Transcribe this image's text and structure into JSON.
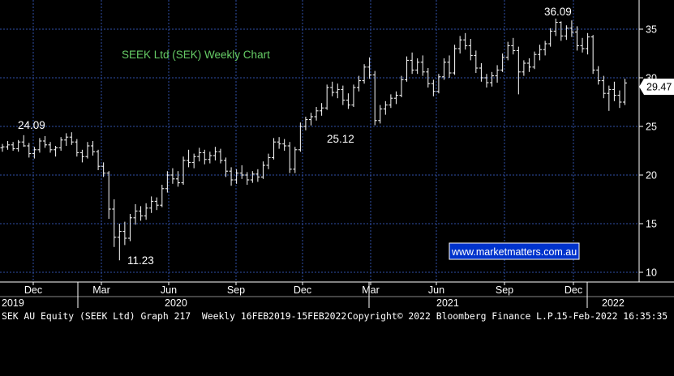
{
  "chart_data": {
    "type": "ohlc",
    "title": "SEEK Ltd (SEK) Weekly Chart",
    "ylim": [
      9,
      38
    ],
    "yticks": [
      10,
      15,
      20,
      25,
      30,
      35
    ],
    "last_price": "29.47",
    "watermark": "www.marketmatters.com.au",
    "month_labels": [
      "Dec",
      "Mar",
      "Jun",
      "Sep",
      "Dec",
      "Mar",
      "Jun",
      "Sep",
      "Dec"
    ],
    "year_labels": [
      "2019",
      "2020",
      "2021",
      "2022"
    ],
    "annotations": [
      {
        "text": "24.09",
        "value": 24.09
      },
      {
        "text": "11.23",
        "value": 11.23
      },
      {
        "text": "25.12",
        "value": 25.12
      },
      {
        "text": "36.09",
        "value": 36.09
      }
    ],
    "series": [
      {
        "values": [
          [
            22.8,
            23.2,
            22.4,
            22.9
          ],
          [
            22.9,
            23.5,
            22.6,
            23.1
          ],
          [
            23.1,
            23.4,
            22.5,
            22.7
          ],
          [
            22.7,
            23.6,
            22.4,
            23.4
          ],
          [
            23.4,
            24.1,
            22.9,
            23.0
          ],
          [
            23.0,
            23.3,
            21.8,
            22.2
          ],
          [
            22.2,
            22.9,
            21.7,
            22.6
          ],
          [
            22.6,
            23.8,
            22.3,
            23.5
          ],
          [
            23.5,
            24.0,
            22.8,
            23.1
          ],
          [
            23.1,
            23.4,
            22.3,
            22.6
          ],
          [
            22.6,
            23.0,
            21.9,
            22.8
          ],
          [
            22.8,
            23.9,
            22.5,
            23.6
          ],
          [
            23.6,
            24.3,
            23.0,
            23.9
          ],
          [
            23.9,
            24.4,
            23.1,
            23.4
          ],
          [
            23.4,
            23.7,
            21.9,
            22.3
          ],
          [
            22.3,
            22.6,
            21.3,
            21.9
          ],
          [
            21.9,
            23.4,
            21.7,
            23.0
          ],
          [
            23.0,
            23.5,
            22.0,
            22.4
          ],
          [
            22.4,
            22.6,
            20.5,
            20.9
          ],
          [
            20.9,
            21.3,
            19.8,
            20.2
          ],
          [
            20.2,
            20.4,
            15.5,
            16.5
          ],
          [
            16.5,
            17.5,
            12.6,
            13.6
          ],
          [
            13.6,
            15.0,
            11.23,
            14.2
          ],
          [
            14.2,
            15.2,
            12.8,
            13.5
          ],
          [
            13.5,
            16.0,
            13.2,
            15.6
          ],
          [
            15.6,
            17.0,
            14.9,
            16.3
          ],
          [
            16.3,
            16.8,
            15.3,
            15.8
          ],
          [
            15.8,
            17.1,
            15.4,
            16.6
          ],
          [
            16.6,
            17.8,
            16.1,
            17.3
          ],
          [
            17.3,
            17.7,
            16.4,
            16.9
          ],
          [
            16.9,
            19.0,
            16.7,
            18.6
          ],
          [
            18.6,
            20.4,
            18.2,
            20.0
          ],
          [
            20.0,
            20.7,
            19.1,
            19.6
          ],
          [
            19.6,
            20.4,
            18.8,
            19.2
          ],
          [
            19.2,
            21.9,
            19.0,
            21.5
          ],
          [
            21.5,
            22.6,
            20.8,
            21.3
          ],
          [
            21.3,
            22.2,
            20.7,
            21.9
          ],
          [
            21.9,
            22.8,
            21.4,
            22.3
          ],
          [
            22.3,
            22.6,
            21.1,
            21.6
          ],
          [
            21.6,
            22.4,
            21.2,
            22.0
          ],
          [
            22.0,
            22.9,
            21.5,
            22.4
          ],
          [
            22.4,
            22.7,
            21.2,
            21.5
          ],
          [
            21.5,
            21.8,
            19.8,
            20.4
          ],
          [
            20.4,
            20.8,
            18.9,
            19.5
          ],
          [
            19.5,
            20.6,
            19.1,
            20.2
          ],
          [
            20.2,
            21.0,
            19.6,
            20.0
          ],
          [
            20.0,
            20.3,
            19.0,
            19.5
          ],
          [
            19.5,
            20.4,
            19.2,
            20.1
          ],
          [
            20.1,
            20.6,
            19.3,
            19.8
          ],
          [
            19.8,
            21.4,
            19.6,
            21.0
          ],
          [
            21.0,
            22.2,
            20.6,
            21.8
          ],
          [
            21.8,
            23.8,
            21.6,
            23.4
          ],
          [
            23.4,
            23.9,
            22.7,
            23.2
          ],
          [
            23.2,
            23.7,
            22.5,
            23.0
          ],
          [
            23.0,
            23.4,
            20.2,
            20.6
          ],
          [
            20.6,
            22.9,
            20.2,
            22.6
          ],
          [
            22.6,
            25.4,
            22.4,
            25.0
          ],
          [
            25.0,
            26.0,
            24.6,
            25.7
          ],
          [
            25.7,
            26.4,
            25.1,
            26.0
          ],
          [
            26.0,
            27.0,
            25.6,
            26.6
          ],
          [
            26.6,
            27.4,
            26.1,
            26.9
          ],
          [
            26.9,
            29.3,
            26.7,
            29.0
          ],
          [
            29.0,
            29.6,
            28.1,
            28.5
          ],
          [
            28.5,
            29.4,
            27.9,
            28.8
          ],
          [
            28.8,
            29.2,
            27.2,
            27.7
          ],
          [
            27.7,
            28.4,
            26.8,
            27.2
          ],
          [
            27.2,
            29.3,
            27.0,
            29.0
          ],
          [
            29.0,
            30.2,
            28.6,
            29.7
          ],
          [
            29.7,
            31.4,
            29.4,
            31.1
          ],
          [
            31.1,
            32.1,
            29.9,
            30.3
          ],
          [
            30.3,
            30.7,
            25.12,
            25.6
          ],
          [
            25.6,
            27.2,
            25.3,
            26.8
          ],
          [
            26.8,
            27.6,
            26.2,
            27.2
          ],
          [
            27.2,
            28.3,
            26.9,
            27.9
          ],
          [
            27.9,
            28.6,
            27.3,
            28.2
          ],
          [
            28.2,
            30.2,
            28.0,
            29.8
          ],
          [
            29.8,
            32.2,
            29.6,
            31.8
          ],
          [
            31.8,
            32.6,
            30.4,
            30.8
          ],
          [
            30.8,
            32.0,
            30.4,
            31.6
          ],
          [
            31.6,
            32.3,
            30.2,
            30.6
          ],
          [
            30.6,
            31.0,
            29.0,
            29.4
          ],
          [
            29.4,
            29.8,
            28.1,
            28.6
          ],
          [
            28.6,
            30.4,
            28.4,
            30.1
          ],
          [
            30.1,
            32.0,
            29.8,
            31.6
          ],
          [
            31.6,
            32.3,
            30.0,
            30.5
          ],
          [
            30.5,
            33.4,
            30.3,
            33.0
          ],
          [
            33.0,
            34.3,
            32.5,
            33.9
          ],
          [
            33.9,
            34.6,
            32.9,
            33.3
          ],
          [
            33.3,
            34.0,
            31.8,
            32.3
          ],
          [
            32.3,
            32.8,
            30.5,
            31.0
          ],
          [
            31.0,
            31.5,
            29.6,
            30.0
          ],
          [
            30.0,
            30.4,
            29.0,
            29.5
          ],
          [
            29.5,
            30.6,
            29.1,
            30.2
          ],
          [
            30.2,
            31.3,
            29.5,
            30.8
          ],
          [
            30.8,
            32.5,
            30.6,
            32.1
          ],
          [
            32.1,
            33.7,
            31.8,
            33.3
          ],
          [
            33.3,
            34.1,
            32.4,
            32.8
          ],
          [
            32.8,
            33.2,
            28.3,
            30.6
          ],
          [
            30.6,
            31.8,
            30.2,
            31.5
          ],
          [
            31.5,
            32.0,
            30.6,
            31.1
          ],
          [
            31.1,
            32.7,
            30.9,
            32.4
          ],
          [
            32.4,
            33.4,
            31.8,
            32.9
          ],
          [
            32.9,
            33.8,
            32.3,
            33.5
          ],
          [
            33.5,
            35.1,
            33.2,
            34.8
          ],
          [
            34.8,
            36.09,
            34.3,
            35.7
          ],
          [
            35.7,
            35.8,
            33.8,
            34.3
          ],
          [
            34.3,
            35.4,
            33.9,
            35.1
          ],
          [
            35.1,
            35.9,
            34.2,
            34.7
          ],
          [
            34.7,
            35.3,
            32.8,
            33.3
          ],
          [
            33.3,
            34.1,
            32.6,
            33.0
          ],
          [
            33.0,
            34.6,
            32.4,
            34.2
          ],
          [
            34.2,
            34.4,
            30.4,
            30.8
          ],
          [
            30.8,
            31.2,
            29.3,
            29.7
          ],
          [
            29.7,
            30.2,
            27.9,
            28.4
          ],
          [
            28.4,
            29.2,
            26.6,
            28.8
          ],
          [
            28.8,
            29.6,
            27.6,
            28.2
          ],
          [
            28.2,
            28.7,
            26.9,
            27.5
          ],
          [
            27.5,
            29.9,
            27.2,
            29.47
          ]
        ]
      }
    ]
  },
  "footer": {
    "left": "SEK AU Equity (SEEK Ltd) Graph 217  Weekly 16FEB2019-15FEB2022",
    "middle": "Copyright© 2022 Bloomberg Finance L.P.",
    "right": "15-Feb-2022 16:35:35"
  },
  "colors": {
    "background": "#000000",
    "bars": "#ffffff",
    "grid": "#2f4fa8",
    "title": "#66cc66",
    "watermark_bg": "#0033cc",
    "text": "#ffffff"
  }
}
